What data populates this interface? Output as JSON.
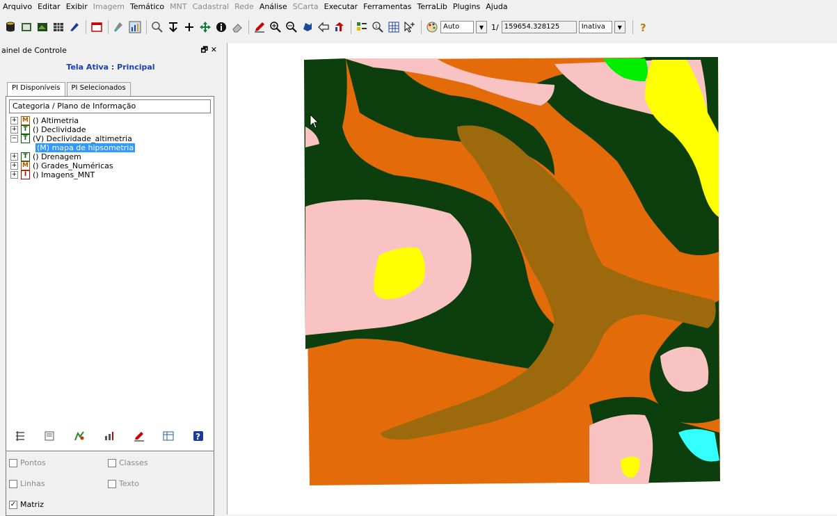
{
  "menu": [
    {
      "label": "Arquivo",
      "enabled": true
    },
    {
      "label": "Editar",
      "enabled": true
    },
    {
      "label": "Exibir",
      "enabled": true
    },
    {
      "label": "Imagem",
      "enabled": false
    },
    {
      "label": "Temático",
      "enabled": true
    },
    {
      "label": "MNT",
      "enabled": false
    },
    {
      "label": "Cadastral",
      "enabled": false
    },
    {
      "label": "Rede",
      "enabled": false
    },
    {
      "label": "Análise",
      "enabled": true
    },
    {
      "label": "SCarta",
      "enabled": false
    },
    {
      "label": "Executar",
      "enabled": true
    },
    {
      "label": "Ferramentas",
      "enabled": true
    },
    {
      "label": "TerraLib",
      "enabled": true
    },
    {
      "label": "Plugins",
      "enabled": true
    },
    {
      "label": "Ajuda",
      "enabled": true
    }
  ],
  "toolbar": {
    "scale_mode": "Auto",
    "scale_prefix": "1/",
    "scale_value": "159654.328125",
    "state": "Inativa"
  },
  "panel": {
    "title": "ainel de Controle",
    "controls": "🗗 ✕",
    "active_screen": "Tela Ativa : Principal",
    "tabs": [
      "PI Disponíveis",
      "PI Selecionados"
    ],
    "tree_header": "Categoria / Plano de Informação",
    "tree": [
      {
        "badge": "M",
        "label": "() Altimetria",
        "expanded": false
      },
      {
        "badge": "T",
        "label": "() Declividade",
        "expanded": false
      },
      {
        "badge": "T",
        "label": "(V) Declividade_altimetria",
        "expanded": true
      },
      {
        "badge": "",
        "label": "(M) mapa de hipsometria",
        "child": true
      },
      {
        "badge": "T",
        "label": "() Drenagem",
        "expanded": false
      },
      {
        "badge": "M",
        "label": "() Grades_Numéricas",
        "expanded": false
      },
      {
        "badge": "I",
        "label": "() Imagens_MNT",
        "expanded": false
      }
    ],
    "options": {
      "pontos": "Pontos",
      "classes": "Classes",
      "linhas": "Linhas",
      "texto": "Texto",
      "matriz": "Matriz",
      "matriz_checked": "✓"
    }
  },
  "map_colors": {
    "dark_green": "#0d3e0d",
    "orange": "#e36b0a",
    "brown": "#9c6a0c",
    "pink": "#f9c3c3",
    "yellow": "#ffff00",
    "green": "#00ee00",
    "cyan": "#33ffff"
  }
}
